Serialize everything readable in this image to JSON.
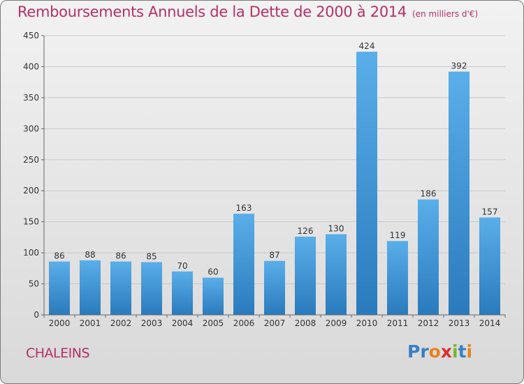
{
  "header": {
    "title": "Remboursements Annuels de la Dette de 2000 à 2014",
    "unit": "(en milliers d'€)"
  },
  "footer": {
    "commune": "CHALEINS",
    "logo": {
      "text": "Proxiti",
      "letter_colors": [
        "#3a7fc4",
        "#3a7fc4",
        "#e8821e",
        "#d8312e",
        "#76b82a",
        "#3a7fc4",
        "#e8821e"
      ]
    }
  },
  "chart_data": {
    "type": "bar",
    "title": "Remboursements Annuels de la Dette de 2000 à 2014",
    "categories": [
      "2000",
      "2001",
      "2002",
      "2003",
      "2004",
      "2005",
      "2006",
      "2007",
      "2008",
      "2009",
      "2010",
      "2011",
      "2012",
      "2013",
      "2014"
    ],
    "values": [
      86,
      88,
      86,
      85,
      70,
      60,
      163,
      87,
      126,
      130,
      424,
      119,
      186,
      392,
      157
    ],
    "ylim": [
      0,
      450
    ],
    "yticks": [
      0,
      50,
      100,
      150,
      200,
      250,
      300,
      350,
      400,
      450
    ],
    "grid": true,
    "colors": {
      "bar_top": "#5aaee9",
      "bar_bottom": "#2a7bbd",
      "grid": "#c8c8c8",
      "text": "#333333"
    }
  }
}
